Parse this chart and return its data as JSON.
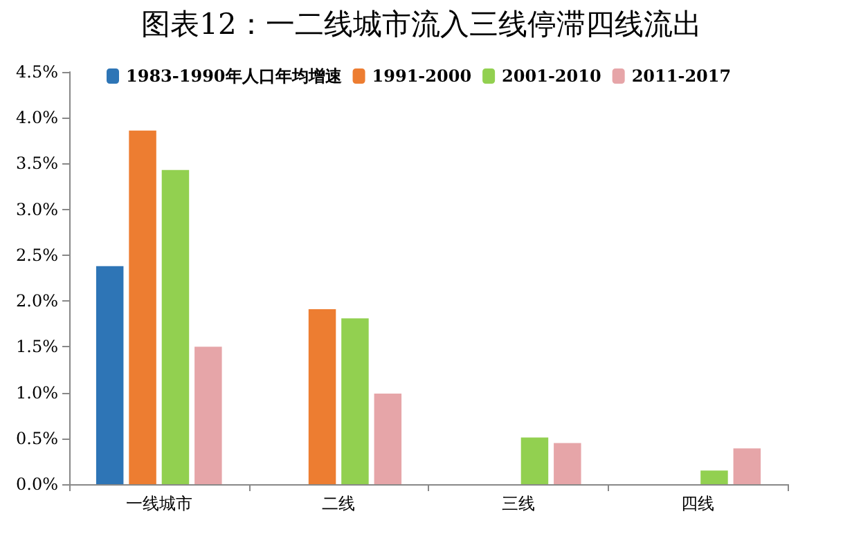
{
  "chart_data": {
    "type": "bar",
    "title": "图表12：一二线城市流入三线停滞四线流出",
    "categories": [
      "一线城市",
      "二线",
      "三线",
      "四线"
    ],
    "series": [
      {
        "name": "1983-1990年人口年均增速",
        "color": "#2e75b6",
        "values": [
          2.38,
          null,
          null,
          null
        ]
      },
      {
        "name": "1991-2000",
        "color": "#ed7d31",
        "values": [
          3.86,
          1.91,
          null,
          null
        ]
      },
      {
        "name": "2001-2010",
        "color": "#92d050",
        "values": [
          3.43,
          1.81,
          0.51,
          0.15
        ]
      },
      {
        "name": "2011-2017",
        "color": "#e6a5a8",
        "values": [
          1.5,
          0.99,
          0.45,
          0.39
        ]
      }
    ],
    "ylim": [
      0,
      4.5
    ],
    "yticks": [
      {
        "value": 0,
        "label": "0.0%"
      },
      {
        "value": 0.5,
        "label": "0.5%"
      },
      {
        "value": 1,
        "label": "1.0%"
      },
      {
        "value": 1.5,
        "label": "1.5%"
      },
      {
        "value": 2,
        "label": "2.0%"
      },
      {
        "value": 2.5,
        "label": "2.5%"
      },
      {
        "value": 3,
        "label": "3.0%"
      },
      {
        "value": 3.5,
        "label": "3.5%"
      },
      {
        "value": 4,
        "label": "4.0%"
      },
      {
        "value": 4.5,
        "label": "4.5%"
      }
    ],
    "grid": false,
    "legend": "top"
  }
}
